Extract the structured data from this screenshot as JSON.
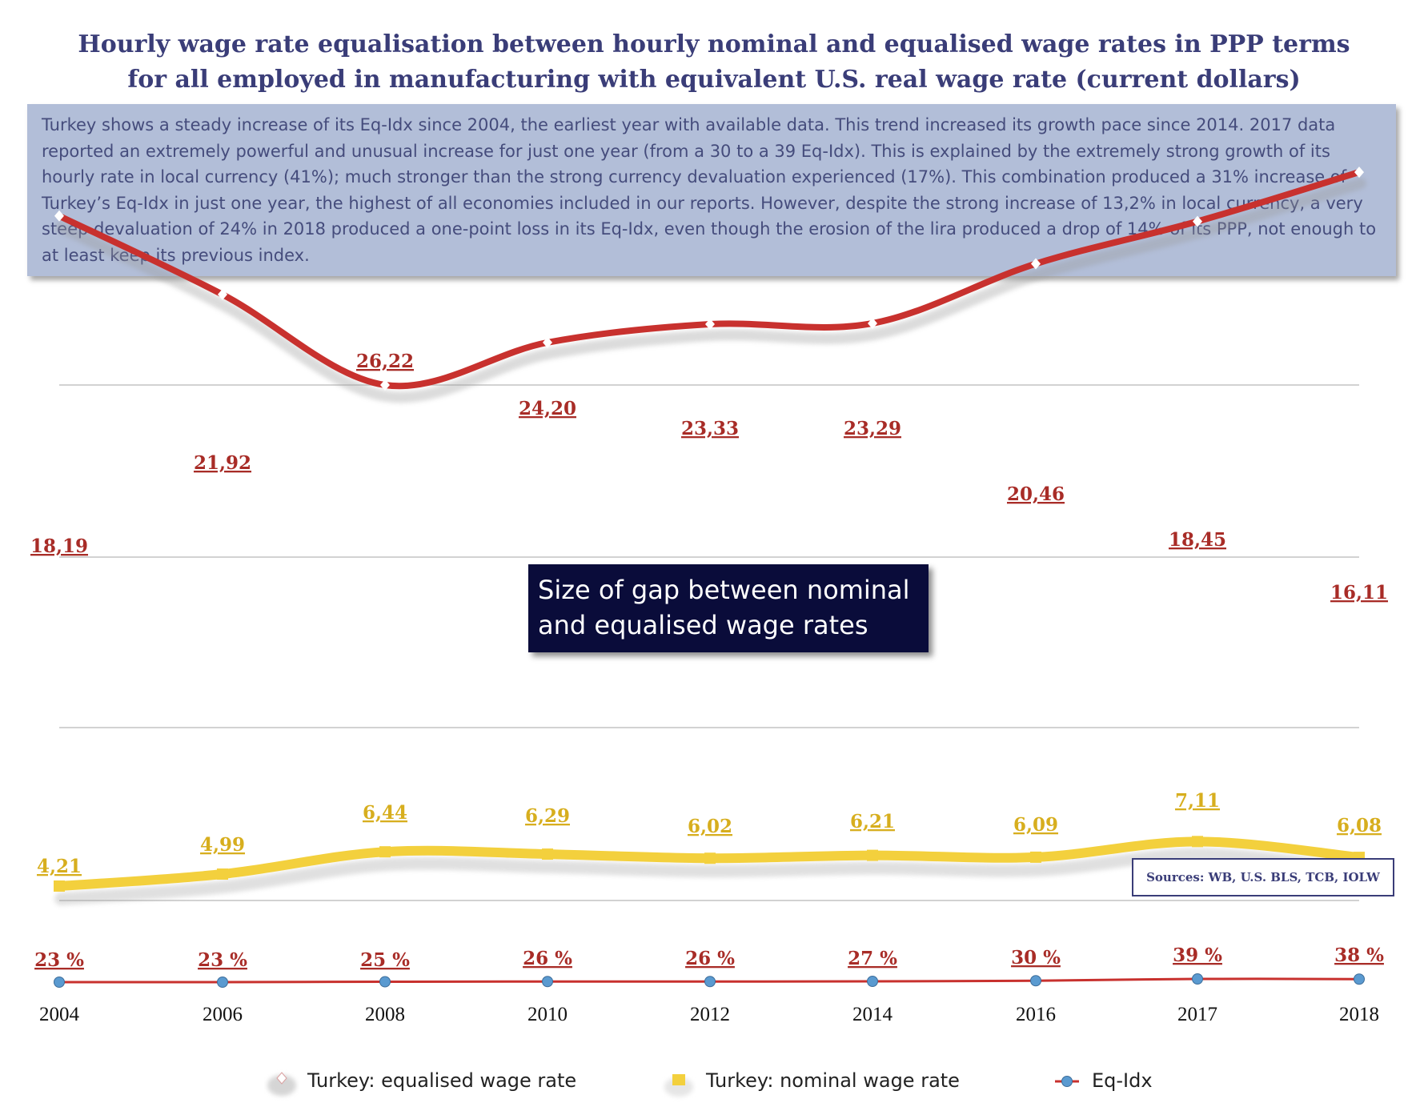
{
  "title_line1": "Hourly wage rate equalisation between hourly nominal and equalised wage rates in PPP terms",
  "title_line2": "for all employed in manufacturing with equivalent U.S. real wage rate (current dollars)",
  "description": "Turkey shows a steady increase of its Eq-Idx since 2004, the earliest year with available data. This trend increased its growth pace since 2014. 2017 data reported an extremely powerful and unusual increase for just one year (from a 30 to a 39 Eq-Idx). This is explained by the extremely strong growth of its hourly rate in local currency (41%); much stronger than the strong currency devaluation experienced (17%). This combination produced a 31% increase of Turkey’s Eq-Idx in just one year, the highest of all economies included in our reports. However, despite the strong increase of 13,2% in local currency, a very steep devaluation of 24% in 2018 produced a one-point loss in its Eq-Idx, even though the erosion of the lira produced a drop of 14% of its PPP, not enough to at least keep its previous index.",
  "gap_label": "Size of gap between nominal and equalised wage rates",
  "sources_label": "Sources: WB, U.S. BLS, TCB, IOLW",
  "colors": {
    "equalised": "#c8312e",
    "nominal": "#f3d03d",
    "eq_idx_line": "#c8312e",
    "eq_idx_marker": "#5a9ad0",
    "title": "#3a3d78",
    "desc_bg": "#b2bed8"
  },
  "legend": {
    "equalised": "Turkey: equalised wage rate",
    "nominal": "Turkey: nominal wage rate",
    "eq_idx": "Eq-Idx"
  },
  "chart_data": {
    "type": "line",
    "categories": [
      "2004",
      "2006",
      "2008",
      "2010",
      "2012",
      "2014",
      "2016",
      "2017",
      "2018"
    ],
    "series": [
      {
        "name": "Turkey: equalised wage rate",
        "values": [
          18.19,
          21.92,
          26.22,
          24.2,
          23.33,
          23.29,
          20.46,
          18.45,
          16.11
        ],
        "labels": [
          "18,19",
          "21,92",
          "26,22",
          "24,20",
          "23,33",
          "23,29",
          "20,46",
          "18,45",
          "16,11"
        ]
      },
      {
        "name": "Turkey: nominal wage rate",
        "values": [
          4.21,
          4.99,
          6.44,
          6.29,
          6.02,
          6.21,
          6.09,
          7.11,
          6.08
        ],
        "labels": [
          "4,21",
          "4,99",
          "6,44",
          "6,29",
          "6,02",
          "6,21",
          "6,09",
          "7,11",
          "6,08"
        ]
      },
      {
        "name": "Eq-Idx",
        "values": [
          23,
          23,
          25,
          26,
          26,
          27,
          30,
          39,
          38
        ],
        "labels": [
          "23 %",
          "23 %",
          "25 %",
          "26 %",
          "26 %",
          "27 %",
          "30 %",
          "39 %",
          "38 %"
        ]
      }
    ],
    "gridlines": true,
    "legend_position": "bottom"
  }
}
